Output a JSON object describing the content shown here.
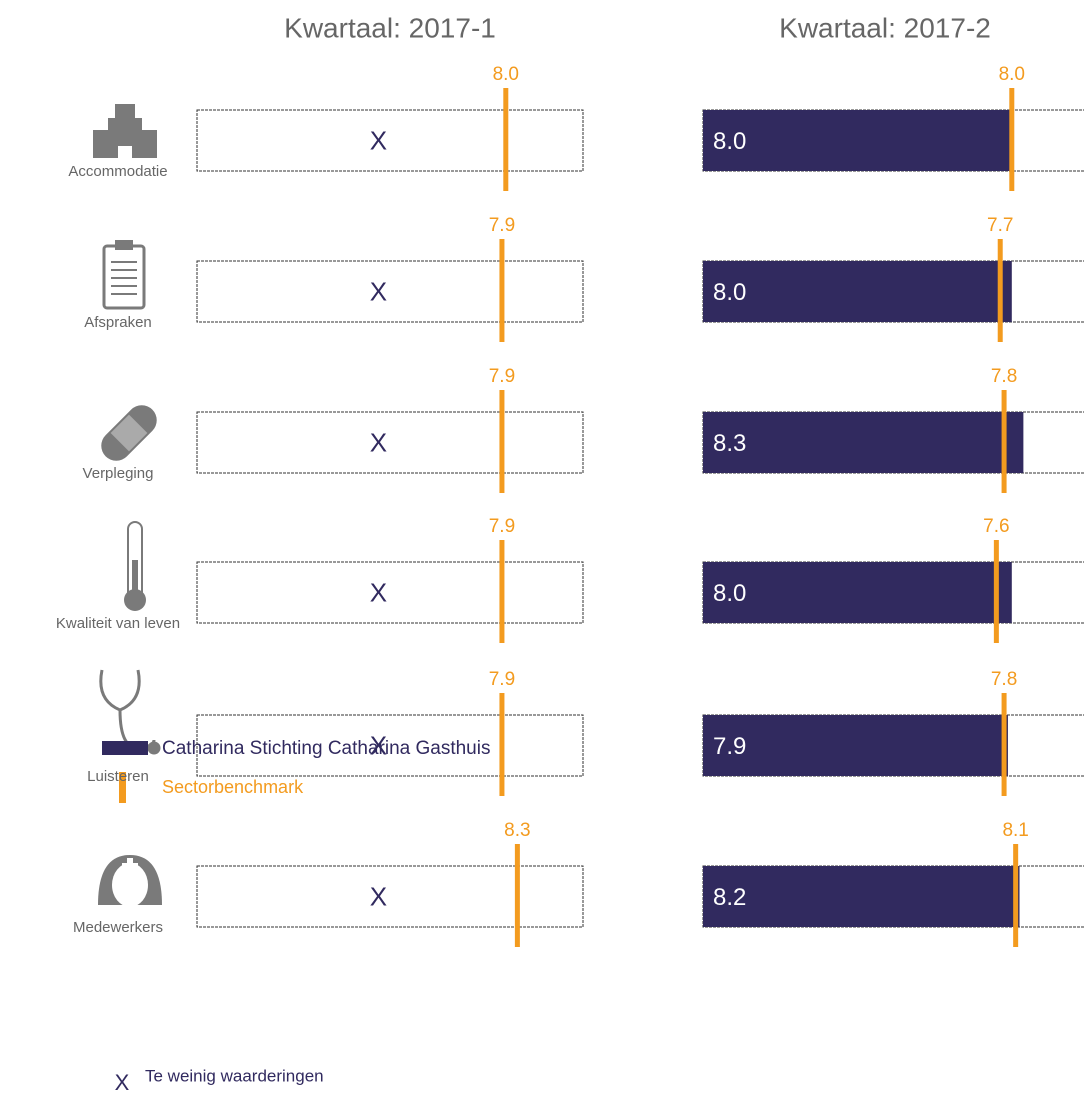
{
  "chart_data": {
    "type": "bullet",
    "categories": [
      "Accommodatie",
      "Afspraken",
      "Verpleging",
      "Kwaliteit van leven",
      "Luisteren",
      "Medewerkers"
    ],
    "xlim": [
      0,
      10
    ],
    "series_name": "Catharina Stichting Catharina Gasthuis",
    "series_color": "#312a5f",
    "benchmark_name": "Sectorbenchmark",
    "benchmark_color": "#f39b1f",
    "missing_label": "X",
    "missing_name": "Te weinig waarderingen",
    "panels": [
      {
        "title": "Kwartaal: 2017-1",
        "values": [
          null,
          null,
          null,
          null,
          null,
          null
        ],
        "benchmark": [
          8.0,
          7.9,
          7.9,
          7.9,
          7.9,
          8.3
        ],
        "benchmark_labels": [
          "8.0",
          "7.9",
          "7.9",
          "7.9",
          "7.9",
          "8.3"
        ]
      },
      {
        "title": "Kwartaal: 2017-2",
        "values": [
          8.0,
          8.0,
          8.3,
          8.0,
          7.9,
          8.2
        ],
        "value_labels": [
          "8.0",
          "8.0",
          "8.3",
          "8.0",
          "7.9",
          "8.2"
        ],
        "benchmark": [
          8.0,
          7.7,
          7.8,
          7.6,
          7.8,
          8.1
        ],
        "benchmark_labels": [
          "8.0",
          "7.7",
          "7.8",
          "7.6",
          "7.8",
          "8.1"
        ]
      }
    ]
  }
}
